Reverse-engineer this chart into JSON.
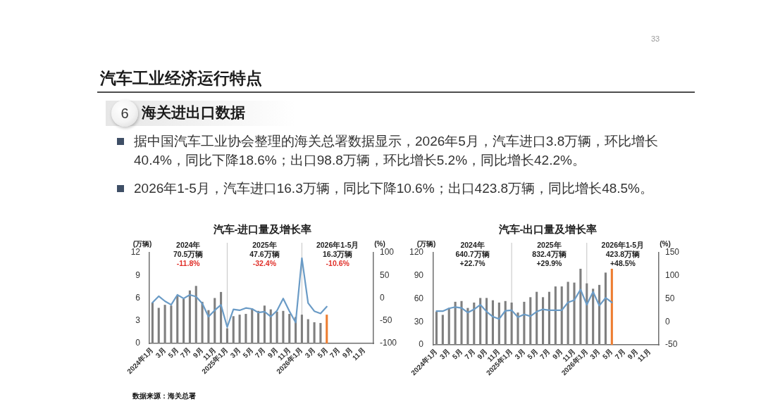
{
  "chart_data": [
    {
      "type": "other",
      "title": "汽车工业经济运行特点",
      "subtitle": "海关进出口数据",
      "annotations": [
        "33",
        "6",
        "据中国汽车工业协会整理的海关总署数据显示，2026年5月，汽车进口3.8万辆，环比增长40.4%，同比下降18.6%；出口98.8万辆，环比增长5.2%，同比增长42.2%。",
        "2026年1-5月，汽车进口16.3万辆，同比下降10.6%；出口423.8万辆，同比增长48.5%。"
      ]
    },
    {
      "type": "bar",
      "title": "汽车-进口量及增长率",
      "ylabel": "(万辆)",
      "y2label": "(%)",
      "categories": [
        "2024年1月",
        null,
        "3月",
        null,
        "5月",
        null,
        "7月",
        null,
        "9月",
        null,
        "11月",
        null,
        "2025年1月",
        null,
        "3月",
        null,
        "5月",
        null,
        "7月",
        null,
        "9月",
        null,
        "11月",
        null,
        "2026年1月",
        null,
        "3月",
        null,
        "5月",
        null,
        "7月",
        null,
        "9月",
        null,
        "11月",
        null
      ],
      "series": [
        {
          "type": "bar",
          "colors": [
            "#7f7f7f",
            "#7f7f7f",
            "#7f7f7f",
            "#7f7f7f",
            "#7f7f7f",
            "#7f7f7f",
            "#7f7f7f",
            "#7f7f7f",
            "#7f7f7f",
            "#7f7f7f",
            "#7f7f7f",
            "#7f7f7f",
            "#7f7f7f",
            "#7f7f7f",
            "#7f7f7f",
            "#7f7f7f",
            "#7f7f7f",
            "#7f7f7f",
            "#7f7f7f",
            "#7f7f7f",
            "#7f7f7f",
            "#7f7f7f",
            "#7f7f7f",
            "#7f7f7f",
            "#7f7f7f",
            "#7f7f7f",
            "#7f7f7f",
            "#7f7f7f",
            "#ed7d31",
            "#7f7f7f",
            "#7f7f7f",
            "#7f7f7f",
            "#7f7f7f",
            "#7f7f7f",
            "#7f7f7f",
            "#7f7f7f"
          ],
          "values": [
            5.4,
            4.7,
            5.1,
            5.0,
            6.3,
            5.9,
            7.0,
            7.6,
            5.5,
            4.4,
            6.0,
            6.8,
            2.0,
            3.6,
            3.8,
            3.9,
            4.6,
            4.3,
            5.0,
            4.5,
            4.2,
            4.3,
            3.9,
            3.5,
            3.8,
            3.2,
            2.8,
            2.7,
            3.8,
            null,
            null,
            null,
            null,
            null,
            null,
            null
          ]
        },
        {
          "type": "line",
          "axis": "y2",
          "color": "#6a9bc6",
          "values": [
            -10,
            4,
            -7,
            -15,
            7,
            -1,
            7,
            3,
            -12,
            -41,
            -27,
            -15,
            -64,
            -25,
            -27,
            -22,
            -24,
            -32,
            -30,
            -41,
            -28,
            -1,
            -29,
            -54,
            88,
            -11,
            -29,
            -34,
            -19,
            null,
            null,
            null,
            null,
            null,
            null,
            null
          ]
        }
      ],
      "ylim": [
        0,
        12
      ],
      "yticks": [
        0,
        3,
        6,
        9,
        12
      ],
      "y2lim": [
        -100,
        100
      ],
      "y2ticks": [
        -100,
        -50,
        0,
        50,
        100
      ],
      "ref_lines": [
        {
          "axis": "x",
          "value": "2025年1月"
        },
        {
          "axis": "x",
          "value": "2026年1月"
        }
      ],
      "annotations": [
        "2024年\n70.5万辆\n-11.8%",
        "2025年\n47.6万辆\n-32.4%",
        "2026年1-5月\n16.3万辆\n-10.6%",
        "数据来源：海关总署"
      ]
    },
    {
      "type": "bar",
      "title": "汽车-出口量及增长率",
      "ylabel": "(万辆)",
      "y2label": "(%)",
      "categories": [
        "2024年1月",
        null,
        "3月",
        null,
        "5月",
        null,
        "7月",
        null,
        "9月",
        null,
        "11月",
        null,
        "2025年1月",
        null,
        "3月",
        null,
        "5月",
        null,
        "7月",
        null,
        "9月",
        null,
        "11月",
        null,
        "2026年1月",
        null,
        "3月",
        null,
        "5月",
        null,
        "7月",
        null,
        "9月",
        null,
        "11月",
        null
      ],
      "series": [
        {
          "type": "bar",
          "colors": [
            "#7f7f7f",
            "#7f7f7f",
            "#7f7f7f",
            "#7f7f7f",
            "#7f7f7f",
            "#7f7f7f",
            "#7f7f7f",
            "#7f7f7f",
            "#7f7f7f",
            "#7f7f7f",
            "#7f7f7f",
            "#7f7f7f",
            "#7f7f7f",
            "#7f7f7f",
            "#7f7f7f",
            "#7f7f7f",
            "#7f7f7f",
            "#7f7f7f",
            "#7f7f7f",
            "#7f7f7f",
            "#7f7f7f",
            "#7f7f7f",
            "#7f7f7f",
            "#7f7f7f",
            "#7f7f7f",
            "#7f7f7f",
            "#7f7f7f",
            "#7f7f7f",
            "#ed7d31",
            "#7f7f7f",
            "#7f7f7f",
            "#7f7f7f",
            "#7f7f7f",
            "#7f7f7f",
            "#7f7f7f",
            "#7f7f7f"
          ],
          "values": [
            43,
            39,
            48,
            56,
            57,
            48,
            55,
            61,
            61,
            58,
            55,
            57,
            55,
            42,
            56,
            62,
            69,
            62,
            69,
            76,
            76,
            82,
            81,
            99,
            80,
            73,
            78,
            94,
            99,
            null,
            null,
            null,
            null,
            null,
            null,
            null
          ]
        },
        {
          "type": "line",
          "axis": "y2",
          "color": "#6a9bc6",
          "values": [
            23,
            23,
            29,
            32,
            30,
            20,
            27,
            37,
            22,
            11,
            6,
            24,
            25,
            10,
            16,
            12,
            22,
            27,
            25,
            25,
            25,
            42,
            47,
            70,
            37,
            65,
            35,
            52,
            42,
            null,
            null,
            null,
            null,
            null,
            null,
            null
          ]
        }
      ],
      "ylim": [
        0,
        120
      ],
      "yticks": [
        0,
        30,
        60,
        90,
        120
      ],
      "y2lim": [
        -50,
        150
      ],
      "y2ticks": [
        -50,
        0,
        50,
        100,
        150
      ],
      "ref_lines": [
        {
          "axis": "x",
          "value": "2025年1月"
        },
        {
          "axis": "x",
          "value": "2026年1月"
        }
      ],
      "annotations": [
        "2024年\n640.7万辆\n+22.7%",
        "2025年\n832.4万辆\n+29.9%",
        "2026年1-5月\n423.8万辆\n+48.5%"
      ]
    }
  ]
}
